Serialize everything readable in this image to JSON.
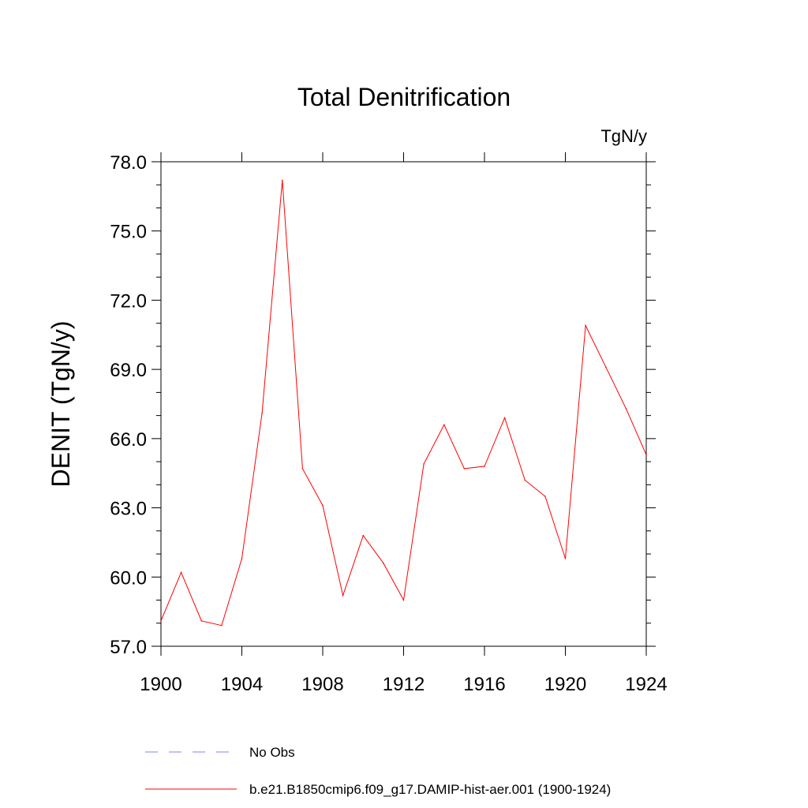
{
  "chart_data": {
    "type": "line",
    "title": "Total Denitrification",
    "units": "TgN/y",
    "ylabel": "DENIT  (TgN/y)",
    "xlabel": "",
    "xlim": [
      1900,
      1924
    ],
    "ylim": [
      57.0,
      78.0
    ],
    "xticks": [
      "1900",
      "1904",
      "1908",
      "1912",
      "1916",
      "1920",
      "1924"
    ],
    "yticks": [
      "57.0",
      "60.0",
      "63.0",
      "66.0",
      "69.0",
      "72.0",
      "75.0",
      "78.0"
    ],
    "series": [
      {
        "name": "b.e21.B1850cmip6.f09_g17.DAMIP-hist-aer.001 (1900-1924)",
        "color": "#ff0000",
        "x": [
          1900,
          1901,
          1902,
          1903,
          1904,
          1905,
          1906,
          1907,
          1908,
          1909,
          1910,
          1911,
          1912,
          1913,
          1914,
          1915,
          1916,
          1917,
          1918,
          1919,
          1920,
          1921,
          1922,
          1923,
          1924
        ],
        "y": [
          58.1,
          60.2,
          58.1,
          57.9,
          60.8,
          67.1,
          77.2,
          64.7,
          63.1,
          59.2,
          61.8,
          60.6,
          59.0,
          64.9,
          66.6,
          64.7,
          64.8,
          66.9,
          64.2,
          63.5,
          60.8,
          70.9,
          69.1,
          67.3,
          65.3
        ]
      }
    ],
    "legend": {
      "position": "bottom",
      "entries": [
        {
          "label": "No Obs",
          "color": "#8080ff",
          "style": "dashed"
        },
        {
          "label": "b.e21.B1850cmip6.f09_g17.DAMIP-hist-aer.001 (1900-1924)",
          "color": "#ff0000",
          "style": "solid"
        }
      ]
    },
    "grid": false
  }
}
